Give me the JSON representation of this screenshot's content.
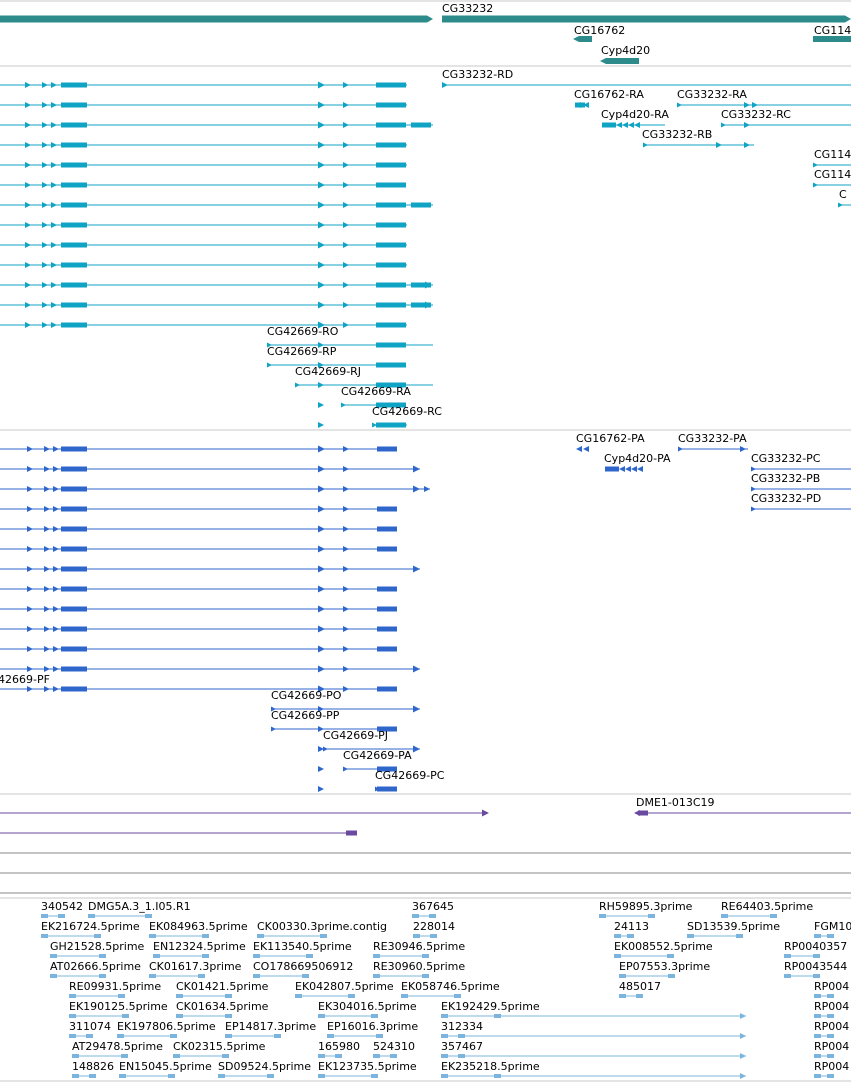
{
  "colors": {
    "gene": "#2e8b8b",
    "transcript": "#0fa3c4",
    "protein": "#2f66cc",
    "clone": "#6a4aa0",
    "est": "#7bb4dc",
    "divider": "#c8c8c8"
  },
  "gene_track": {
    "labels": [
      "CG33232",
      "CG16762",
      "Cyp4d20",
      "CG114"
    ]
  },
  "transcript_track": {
    "labels": [
      "CG33232-RD",
      "CG16762-RA",
      "CG33232-RA",
      "Cyp4d20-RA",
      "CG33232-RC",
      "CG33232-RB",
      "CG114",
      "CG114",
      "C",
      "CG42669-RO",
      "CG42669-RP",
      "CG42669-RJ",
      "CG42669-RA",
      "CG42669-RC"
    ]
  },
  "protein_track": {
    "labels": [
      "CG16762-PA",
      "CG33232-PA",
      "Cyp4d20-PA",
      "CG33232-PC",
      "CG33232-PB",
      "CG33232-PD",
      "42669-PF",
      "CG42669-PO",
      "CG42669-PP",
      "CG42669-PJ",
      "CG42669-PA",
      "CG42669-PC"
    ]
  },
  "clone_track": {
    "labels": [
      "DME1-013C19"
    ]
  },
  "est_track": {
    "labels": [
      "340542",
      "DMG5A.3_1.I05.R1",
      "367645",
      "RH59895.3prime",
      "RE64403.5prime",
      "EK216724.5prime",
      "EK084963.5prime",
      "CK00330.3prime.contig",
      "228014",
      "24113",
      "SD13539.5prime",
      "FGM10",
      "GH21528.5prime",
      "EN12324.5prime",
      "EK113540.5prime",
      "RE30946.5prime",
      "EK008552.5prime",
      "RP0040357",
      "AT02666.5prime",
      "CK01617.3prime",
      "CO178669506912",
      "RE30960.5prime",
      "EP07553.3prime",
      "RP0043544",
      "RE09931.5prime",
      "CK01421.5prime",
      "EK042807.5prime",
      "EK058746.5prime",
      "485017",
      "RP004",
      "EK190125.5prime",
      "CK01634.5prime",
      "EK304016.5prime",
      "EK192429.5prime",
      "RP004",
      "311074",
      "EK197806.5prime",
      "EP14817.3prime",
      "EP16016.3prime",
      "312334",
      "RP004",
      "AT29478.5prime",
      "CK02315.5prime",
      "165980",
      "524310",
      "357467",
      "RP004",
      "148826",
      "EN15045.5prime",
      "SD09524.5prime",
      "EK123735.5prime",
      "EK235218.5prime",
      "RP004"
    ]
  }
}
